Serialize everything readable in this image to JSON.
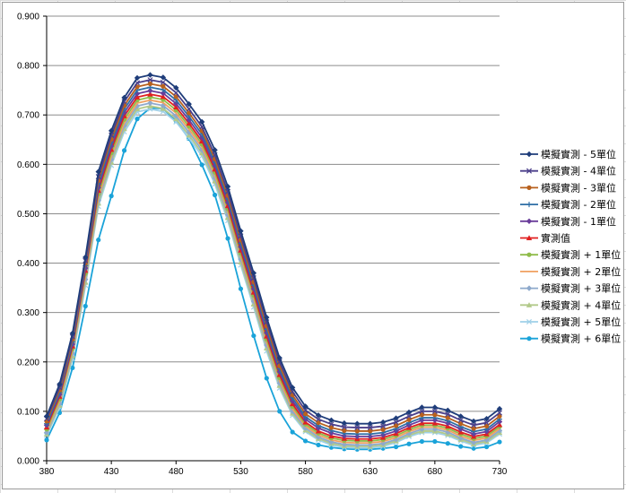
{
  "chart_data": {
    "type": "line",
    "title": "",
    "xlabel": "",
    "ylabel": "",
    "x": [
      380,
      390,
      400,
      410,
      420,
      430,
      440,
      450,
      460,
      470,
      480,
      490,
      500,
      510,
      520,
      530,
      540,
      550,
      560,
      570,
      580,
      590,
      600,
      610,
      620,
      630,
      640,
      650,
      660,
      670,
      680,
      690,
      700,
      710,
      720,
      730
    ],
    "xlim": [
      380,
      730
    ],
    "ylim": [
      0,
      0.9
    ],
    "x_ticks": [
      "380",
      "430",
      "480",
      "530",
      "580",
      "630",
      "680",
      "730"
    ],
    "y_ticks": [
      "0.000",
      "0.100",
      "0.200",
      "0.300",
      "0.400",
      "0.500",
      "0.600",
      "0.700",
      "0.800",
      "0.900"
    ],
    "grid": "horizontal",
    "legend_position": "right",
    "series": [
      {
        "name": "模擬實測 - 5單位",
        "color": "#1f3d7a",
        "marker": "diamond",
        "values": [
          0.09,
          0.155,
          0.258,
          0.412,
          0.585,
          0.668,
          0.735,
          0.775,
          0.781,
          0.776,
          0.755,
          0.722,
          0.686,
          0.629,
          0.555,
          0.465,
          0.38,
          0.29,
          0.208,
          0.148,
          0.11,
          0.092,
          0.082,
          0.076,
          0.075,
          0.075,
          0.078,
          0.086,
          0.098,
          0.108,
          0.108,
          0.102,
          0.09,
          0.08,
          0.085,
          0.105
        ]
      },
      {
        "name": "模擬實測 - 4單位",
        "color": "#4b3f8a",
        "marker": "x",
        "values": [
          0.085,
          0.148,
          0.251,
          0.405,
          0.575,
          0.659,
          0.727,
          0.765,
          0.771,
          0.766,
          0.745,
          0.712,
          0.676,
          0.619,
          0.545,
          0.455,
          0.37,
          0.281,
          0.2,
          0.14,
          0.102,
          0.084,
          0.074,
          0.068,
          0.067,
          0.067,
          0.07,
          0.078,
          0.09,
          0.1,
          0.1,
          0.094,
          0.082,
          0.072,
          0.077,
          0.097
        ]
      },
      {
        "name": "模擬實測 - 3單位",
        "color": "#b8611e",
        "marker": "circle",
        "values": [
          0.08,
          0.143,
          0.246,
          0.4,
          0.567,
          0.651,
          0.719,
          0.757,
          0.763,
          0.758,
          0.737,
          0.704,
          0.668,
          0.611,
          0.537,
          0.447,
          0.362,
          0.273,
          0.192,
          0.133,
          0.095,
          0.077,
          0.067,
          0.061,
          0.06,
          0.06,
          0.063,
          0.071,
          0.083,
          0.093,
          0.093,
          0.087,
          0.075,
          0.065,
          0.07,
          0.09
        ]
      },
      {
        "name": "模擬實測 - 2單位",
        "color": "#2e6ea6",
        "marker": "plus",
        "values": [
          0.075,
          0.138,
          0.241,
          0.395,
          0.56,
          0.644,
          0.712,
          0.75,
          0.756,
          0.751,
          0.73,
          0.697,
          0.661,
          0.604,
          0.53,
          0.44,
          0.355,
          0.266,
          0.186,
          0.127,
          0.089,
          0.071,
          0.061,
          0.055,
          0.054,
          0.054,
          0.057,
          0.065,
          0.077,
          0.087,
          0.087,
          0.081,
          0.069,
          0.059,
          0.064,
          0.084
        ]
      },
      {
        "name": "模擬實測 - 1單位",
        "color": "#6a3d9a",
        "marker": "diamond",
        "values": [
          0.072,
          0.134,
          0.236,
          0.39,
          0.553,
          0.637,
          0.705,
          0.743,
          0.749,
          0.744,
          0.723,
          0.69,
          0.654,
          0.597,
          0.523,
          0.433,
          0.348,
          0.259,
          0.18,
          0.121,
          0.084,
          0.066,
          0.056,
          0.05,
          0.049,
          0.049,
          0.052,
          0.06,
          0.072,
          0.082,
          0.082,
          0.076,
          0.064,
          0.054,
          0.059,
          0.079
        ]
      },
      {
        "name": "實測值",
        "color": "#e02020",
        "marker": "triangle",
        "values": [
          0.068,
          0.13,
          0.232,
          0.385,
          0.547,
          0.63,
          0.698,
          0.736,
          0.742,
          0.737,
          0.716,
          0.683,
          0.647,
          0.59,
          0.516,
          0.426,
          0.341,
          0.252,
          0.174,
          0.115,
          0.078,
          0.06,
          0.05,
          0.045,
          0.044,
          0.044,
          0.047,
          0.055,
          0.067,
          0.076,
          0.076,
          0.07,
          0.058,
          0.049,
          0.054,
          0.073
        ]
      },
      {
        "name": "模擬實測 + 1單位",
        "color": "#8fbc4a",
        "marker": "circle",
        "values": [
          0.064,
          0.125,
          0.227,
          0.379,
          0.54,
          0.623,
          0.691,
          0.73,
          0.736,
          0.731,
          0.71,
          0.677,
          0.641,
          0.584,
          0.51,
          0.42,
          0.335,
          0.246,
          0.168,
          0.11,
          0.074,
          0.056,
          0.046,
          0.041,
          0.04,
          0.04,
          0.043,
          0.051,
          0.063,
          0.072,
          0.072,
          0.066,
          0.054,
          0.045,
          0.05,
          0.069
        ]
      },
      {
        "name": "模擬實測 + 2單位",
        "color": "#f0a060",
        "marker": "none",
        "values": [
          0.06,
          0.12,
          0.222,
          0.373,
          0.533,
          0.616,
          0.684,
          0.724,
          0.73,
          0.725,
          0.704,
          0.671,
          0.635,
          0.578,
          0.504,
          0.414,
          0.329,
          0.24,
          0.162,
          0.105,
          0.07,
          0.052,
          0.042,
          0.037,
          0.036,
          0.036,
          0.039,
          0.047,
          0.059,
          0.068,
          0.068,
          0.062,
          0.05,
          0.041,
          0.046,
          0.065
        ]
      },
      {
        "name": "模擬實測 + 3單位",
        "color": "#8ea9cc",
        "marker": "diamond",
        "values": [
          0.057,
          0.116,
          0.217,
          0.367,
          0.527,
          0.61,
          0.678,
          0.718,
          0.724,
          0.719,
          0.698,
          0.665,
          0.629,
          0.572,
          0.498,
          0.408,
          0.323,
          0.234,
          0.157,
          0.1,
          0.066,
          0.048,
          0.038,
          0.033,
          0.032,
          0.032,
          0.035,
          0.043,
          0.055,
          0.064,
          0.064,
          0.058,
          0.046,
          0.037,
          0.042,
          0.061
        ]
      },
      {
        "name": "模擬實測 + 4單位",
        "color": "#b2c98a",
        "marker": "triangle",
        "values": [
          0.054,
          0.112,
          0.212,
          0.361,
          0.521,
          0.604,
          0.672,
          0.712,
          0.718,
          0.713,
          0.692,
          0.659,
          0.623,
          0.566,
          0.492,
          0.402,
          0.317,
          0.228,
          0.152,
          0.096,
          0.062,
          0.045,
          0.035,
          0.03,
          0.029,
          0.029,
          0.032,
          0.04,
          0.052,
          0.06,
          0.06,
          0.054,
          0.043,
          0.034,
          0.039,
          0.057
        ]
      },
      {
        "name": "模擬實測 + 5單位",
        "color": "#9fd0e8",
        "marker": "x",
        "values": [
          0.051,
          0.108,
          0.207,
          0.355,
          0.515,
          0.598,
          0.666,
          0.706,
          0.712,
          0.707,
          0.686,
          0.653,
          0.617,
          0.56,
          0.486,
          0.396,
          0.311,
          0.222,
          0.147,
          0.092,
          0.059,
          0.042,
          0.032,
          0.027,
          0.026,
          0.026,
          0.029,
          0.037,
          0.049,
          0.057,
          0.057,
          0.051,
          0.04,
          0.031,
          0.036,
          0.054
        ]
      },
      {
        "name": "模擬實測 + 6單位",
        "color": "#1aa3d9",
        "marker": "circle",
        "values": [
          0.042,
          0.097,
          0.188,
          0.313,
          0.447,
          0.536,
          0.628,
          0.692,
          0.714,
          0.713,
          0.688,
          0.652,
          0.599,
          0.538,
          0.45,
          0.348,
          0.253,
          0.167,
          0.1,
          0.058,
          0.04,
          0.032,
          0.027,
          0.024,
          0.023,
          0.023,
          0.025,
          0.028,
          0.034,
          0.039,
          0.039,
          0.035,
          0.029,
          0.025,
          0.028,
          0.038
        ]
      }
    ]
  }
}
